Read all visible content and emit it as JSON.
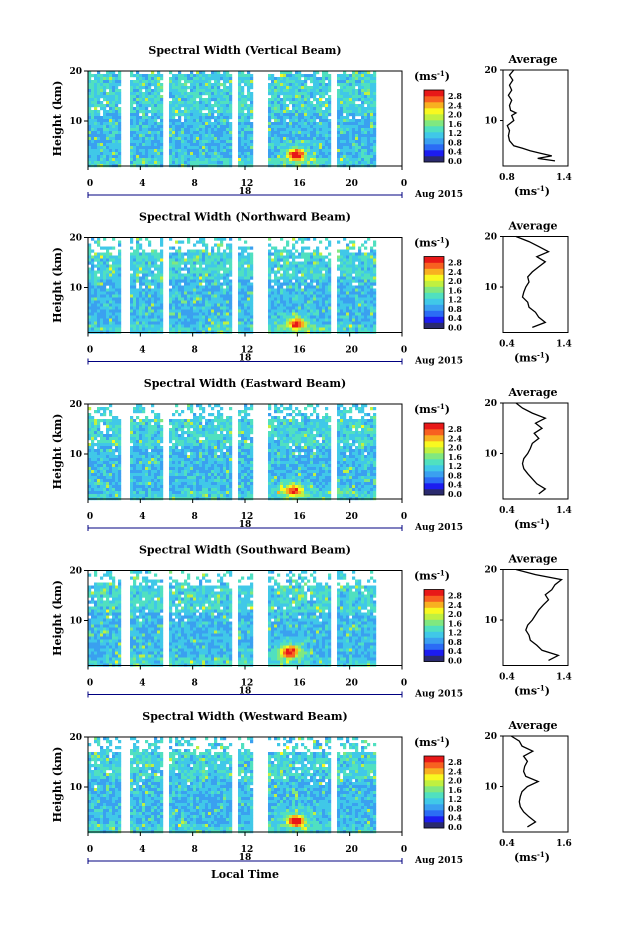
{
  "figure": {
    "xlabel": "Local Time",
    "date_label": "Aug 2015",
    "day_label": "18",
    "colorbar_unit": "(ms",
    "colorbar_unit_exp": "-1",
    "colorbar_unit_close": ")",
    "avg_title": "Average",
    "avg_xunit": "(ms",
    "avg_xunit_exp": "-1",
    "avg_xunit_close": ")",
    "ylabel": "Height (km)",
    "colormap": [
      "#2a2a6e",
      "#1c1cf0",
      "#2b6cf5",
      "#3aa0f0",
      "#40c8e8",
      "#50e0c0",
      "#80e880",
      "#c0f040",
      "#f8f820",
      "#f8b020",
      "#f86020",
      "#e81818"
    ],
    "gap_color": "#ffffff"
  },
  "chart_data": [
    {
      "type": "heatmap",
      "title": "Spectral Width (Vertical Beam)",
      "x_ticks": [
        "0",
        "4",
        "8",
        "12",
        "16",
        "20",
        "0"
      ],
      "xlim": [
        0,
        24
      ],
      "y_ticks": [
        "20",
        "10"
      ],
      "ylim": [
        1,
        20
      ],
      "data_gaps_hours": [
        [
          2.3,
          3.2
        ],
        [
          5.7,
          6.1
        ],
        [
          10.8,
          11.3
        ],
        [
          12.4,
          13.7
        ],
        [
          18.5,
          18.9
        ],
        [
          21.9,
          24
        ]
      ],
      "colorbar_ticks": [
        "2.8",
        "2.4",
        "2.0",
        "1.6",
        "1.2",
        "0.8",
        "0.4",
        "0.0"
      ],
      "hotspot": {
        "time": 15.8,
        "height": 3.5,
        "value": 2.8
      },
      "average": {
        "title": "Average",
        "x_ticks": [
          "0.8",
          "1.4"
        ],
        "xlim": [
          0.8,
          1.4
        ],
        "y_ticks": [
          "20",
          "10"
        ],
        "ylim": [
          1,
          20
        ],
        "profile": [
          [
            1.28,
            2
          ],
          [
            1.12,
            2.5
          ],
          [
            1.25,
            3
          ],
          [
            1.15,
            3.5
          ],
          [
            1.05,
            4
          ],
          [
            0.98,
            4.5
          ],
          [
            0.9,
            5
          ],
          [
            0.86,
            6
          ],
          [
            0.85,
            7
          ],
          [
            0.86,
            8
          ],
          [
            0.84,
            9
          ],
          [
            0.9,
            10
          ],
          [
            0.88,
            11
          ],
          [
            0.92,
            11.5
          ],
          [
            0.87,
            12
          ],
          [
            0.86,
            13
          ],
          [
            0.88,
            14
          ],
          [
            0.85,
            15
          ],
          [
            0.88,
            16
          ],
          [
            0.86,
            17
          ],
          [
            0.89,
            18
          ],
          [
            0.86,
            19
          ],
          [
            0.9,
            20
          ]
        ]
      }
    },
    {
      "type": "heatmap",
      "title": "Spectral Width (Northward Beam)",
      "x_ticks": [
        "0",
        "4",
        "8",
        "12",
        "16",
        "20",
        "0"
      ],
      "xlim": [
        0,
        24
      ],
      "y_ticks": [
        "20",
        "10"
      ],
      "ylim": [
        1,
        20
      ],
      "data_gaps_hours": [
        [
          2.3,
          3.2
        ],
        [
          5.7,
          6.1
        ],
        [
          10.8,
          11.3
        ],
        [
          12.4,
          13.7
        ],
        [
          18.5,
          18.9
        ],
        [
          21.9,
          24
        ]
      ],
      "colorbar_ticks": [
        "2.8",
        "2.4",
        "2.0",
        "1.6",
        "1.2",
        "0.8",
        "0.4",
        "0.0"
      ],
      "hotspot": {
        "time": 15.8,
        "height": 3.0,
        "value": 2.6
      },
      "average": {
        "title": "Average",
        "x_ticks": [
          "0.4",
          "1.4"
        ],
        "xlim": [
          0.4,
          1.4
        ],
        "y_ticks": [
          "20",
          "10"
        ],
        "ylim": [
          1,
          20
        ],
        "profile": [
          [
            0.85,
            2
          ],
          [
            1.05,
            3
          ],
          [
            0.95,
            4
          ],
          [
            0.9,
            5
          ],
          [
            0.8,
            6
          ],
          [
            0.78,
            7
          ],
          [
            0.7,
            8
          ],
          [
            0.72,
            9
          ],
          [
            0.75,
            10
          ],
          [
            0.8,
            11
          ],
          [
            0.78,
            12
          ],
          [
            0.85,
            13
          ],
          [
            0.95,
            14
          ],
          [
            1.05,
            15
          ],
          [
            0.92,
            16
          ],
          [
            1.1,
            17
          ],
          [
            0.95,
            18
          ],
          [
            0.8,
            19
          ],
          [
            0.6,
            20
          ]
        ]
      }
    },
    {
      "type": "heatmap",
      "title": "Spectral Width (Eastward Beam)",
      "x_ticks": [
        "0",
        "4",
        "8",
        "12",
        "16",
        "20",
        "0"
      ],
      "xlim": [
        0,
        24
      ],
      "y_ticks": [
        "20",
        "10"
      ],
      "ylim": [
        1,
        20
      ],
      "data_gaps_hours": [
        [
          2.3,
          3.2
        ],
        [
          5.7,
          6.1
        ],
        [
          10.8,
          11.3
        ],
        [
          12.4,
          13.7
        ],
        [
          18.5,
          18.9
        ],
        [
          21.9,
          24
        ]
      ],
      "colorbar_ticks": [
        "2.8",
        "2.4",
        "2.0",
        "1.6",
        "1.2",
        "0.8",
        "0.4",
        "0.0"
      ],
      "hotspot": {
        "time": 15.6,
        "height": 3.0,
        "value": 2.6
      },
      "average": {
        "title": "Average",
        "x_ticks": [
          "0.4",
          "1.4"
        ],
        "xlim": [
          0.4,
          1.4
        ],
        "y_ticks": [
          "20",
          "10"
        ],
        "ylim": [
          1,
          20
        ],
        "profile": [
          [
            0.95,
            2
          ],
          [
            1.05,
            3
          ],
          [
            0.92,
            4
          ],
          [
            0.85,
            5
          ],
          [
            0.78,
            6
          ],
          [
            0.72,
            7
          ],
          [
            0.7,
            8
          ],
          [
            0.72,
            9
          ],
          [
            0.78,
            10
          ],
          [
            0.82,
            11
          ],
          [
            0.85,
            12
          ],
          [
            0.95,
            13
          ],
          [
            0.88,
            14
          ],
          [
            1.0,
            15
          ],
          [
            0.9,
            16
          ],
          [
            1.05,
            17
          ],
          [
            0.85,
            18
          ],
          [
            0.7,
            19
          ],
          [
            0.6,
            20
          ]
        ]
      }
    },
    {
      "type": "heatmap",
      "title": "Spectral Width (Southward Beam)",
      "x_ticks": [
        "0",
        "4",
        "8",
        "12",
        "16",
        "20",
        "0"
      ],
      "xlim": [
        0,
        24
      ],
      "y_ticks": [
        "20",
        "10"
      ],
      "ylim": [
        1,
        20
      ],
      "data_gaps_hours": [
        [
          2.3,
          3.2
        ],
        [
          5.7,
          6.1
        ],
        [
          10.8,
          11.3
        ],
        [
          12.4,
          13.7
        ],
        [
          18.5,
          18.9
        ],
        [
          21.9,
          24
        ]
      ],
      "colorbar_ticks": [
        "2.8",
        "2.4",
        "2.0",
        "1.6",
        "1.2",
        "0.8",
        "0.4",
        "0.0"
      ],
      "hotspot": {
        "time": 15.3,
        "height": 4.0,
        "value": 2.8
      },
      "average": {
        "title": "Average",
        "x_ticks": [
          "0.4",
          "1.4"
        ],
        "xlim": [
          0.4,
          1.4
        ],
        "y_ticks": [
          "20",
          "10"
        ],
        "ylim": [
          1,
          20
        ],
        "profile": [
          [
            1.1,
            2
          ],
          [
            1.25,
            3
          ],
          [
            1.0,
            4
          ],
          [
            0.92,
            5
          ],
          [
            0.82,
            6
          ],
          [
            0.8,
            7
          ],
          [
            0.75,
            8
          ],
          [
            0.78,
            9
          ],
          [
            0.85,
            10
          ],
          [
            0.9,
            11
          ],
          [
            0.95,
            12
          ],
          [
            1.02,
            13
          ],
          [
            1.1,
            14
          ],
          [
            1.05,
            15
          ],
          [
            1.15,
            16
          ],
          [
            1.2,
            17
          ],
          [
            1.3,
            18
          ],
          [
            0.9,
            19
          ],
          [
            0.6,
            20
          ]
        ]
      }
    },
    {
      "type": "heatmap",
      "title": "Spectral Width (Westward Beam)",
      "x_ticks": [
        "0",
        "4",
        "8",
        "12",
        "16",
        "20",
        "0"
      ],
      "xlim": [
        0,
        24
      ],
      "y_ticks": [
        "20",
        "10"
      ],
      "ylim": [
        1,
        20
      ],
      "data_gaps_hours": [
        [
          2.3,
          3.2
        ],
        [
          5.7,
          6.1
        ],
        [
          10.8,
          11.3
        ],
        [
          12.4,
          13.7
        ],
        [
          18.5,
          18.9
        ],
        [
          21.9,
          24
        ]
      ],
      "colorbar_ticks": [
        "2.8",
        "2.4",
        "2.0",
        "1.6",
        "1.2",
        "0.8",
        "0.4",
        "0.0"
      ],
      "hotspot": {
        "time": 15.8,
        "height": 3.5,
        "value": 2.8
      },
      "average": {
        "title": "Average",
        "x_ticks": [
          "0.4",
          "1.6"
        ],
        "xlim": [
          0.4,
          1.6
        ],
        "y_ticks": [
          "20",
          "10"
        ],
        "ylim": [
          1,
          20
        ],
        "profile": [
          [
            0.85,
            2
          ],
          [
            1.0,
            3
          ],
          [
            0.88,
            4
          ],
          [
            0.78,
            5
          ],
          [
            0.72,
            6
          ],
          [
            0.7,
            7
          ],
          [
            0.72,
            8
          ],
          [
            0.75,
            9
          ],
          [
            0.85,
            10
          ],
          [
            1.05,
            11
          ],
          [
            0.82,
            12
          ],
          [
            0.78,
            13
          ],
          [
            0.8,
            14
          ],
          [
            0.85,
            15
          ],
          [
            0.78,
            16
          ],
          [
            0.95,
            17
          ],
          [
            0.75,
            18
          ],
          [
            0.7,
            19
          ],
          [
            0.55,
            20
          ]
        ]
      }
    }
  ]
}
